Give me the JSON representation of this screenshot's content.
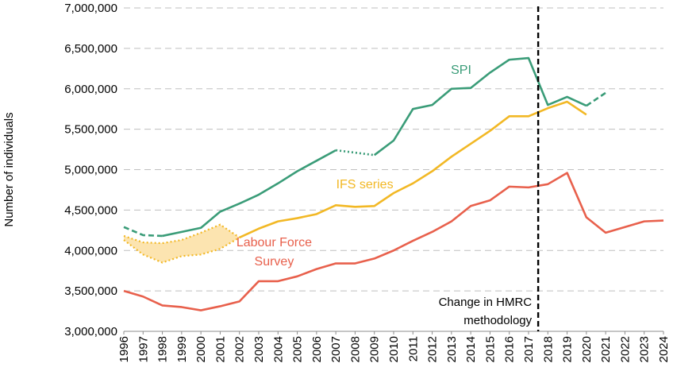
{
  "chart_data": {
    "type": "line",
    "ylabel": "Number of individuals",
    "ylim": [
      3000000,
      7000000
    ],
    "yticks": [
      3000000,
      3500000,
      4000000,
      4500000,
      5000000,
      5500000,
      6000000,
      6500000,
      7000000
    ],
    "ytick_labels": [
      "3,000,000",
      "3,500,000",
      "4,000,000",
      "4,500,000",
      "5,000,000",
      "5,500,000",
      "6,000,000",
      "6,500,000",
      "7,000,000"
    ],
    "x": [
      "1996",
      "1997",
      "1998",
      "1999",
      "2000",
      "2001",
      "2002",
      "2003",
      "2004",
      "2005",
      "2006",
      "2007",
      "2008",
      "2009",
      "2010",
      "2011",
      "2012",
      "2013",
      "2014",
      "2015",
      "2016",
      "2017",
      "2018",
      "2019",
      "2020",
      "2021",
      "2022",
      "2023",
      "2024"
    ],
    "grid": "horizontal dashed",
    "series": [
      {
        "name": "SPI",
        "color": "#3a9c78",
        "values": [
          4290000,
          4190000,
          4180000,
          4230000,
          4280000,
          4480000,
          4580000,
          4690000,
          4830000,
          4980000,
          5110000,
          5240000,
          5210000,
          5180000,
          5360000,
          5750000,
          5800000,
          6000000,
          6010000,
          6200000,
          6360000,
          6380000,
          5800000,
          5900000,
          5790000,
          5950000,
          null,
          null,
          null
        ],
        "note_style": "dashed 1996-1998, dotted 2007-2009, dashed 2020-2021"
      },
      {
        "name": "IFS series",
        "color": "#f2b825",
        "values": [
          null,
          null,
          null,
          null,
          null,
          null,
          4160000,
          4270000,
          4360000,
          4400000,
          4450000,
          4560000,
          4540000,
          4550000,
          4710000,
          4830000,
          4980000,
          5160000,
          5320000,
          5480000,
          5660000,
          5660000,
          5760000,
          5840000,
          5680000,
          null,
          null,
          null,
          null
        ],
        "range_band": {
          "x": [
            "1996",
            "1997",
            "1998",
            "1999",
            "2000",
            "2001",
            "2002"
          ],
          "upper": [
            4180000,
            4100000,
            4090000,
            4130000,
            4220000,
            4320000,
            4160000
          ],
          "lower": [
            4130000,
            3950000,
            3850000,
            3930000,
            3950000,
            4020000,
            4160000
          ]
        }
      },
      {
        "name": "Labour Force Survey",
        "label_lines": [
          "Labour Force",
          "Survey"
        ],
        "color": "#e8604c",
        "values": [
          3500000,
          3430000,
          3320000,
          3300000,
          3260000,
          3310000,
          3370000,
          3620000,
          3620000,
          3680000,
          3770000,
          3840000,
          3840000,
          3900000,
          4000000,
          4120000,
          4230000,
          4360000,
          4550000,
          4620000,
          4790000,
          4780000,
          4820000,
          4960000,
          4410000,
          4220000,
          4290000,
          4360000,
          4370000
        ]
      }
    ],
    "annotations": [
      {
        "text_lines": [
          "Change in HMRC",
          "methodology"
        ],
        "at_x": "2017.5",
        "style": "vertical dashed black line"
      }
    ]
  }
}
